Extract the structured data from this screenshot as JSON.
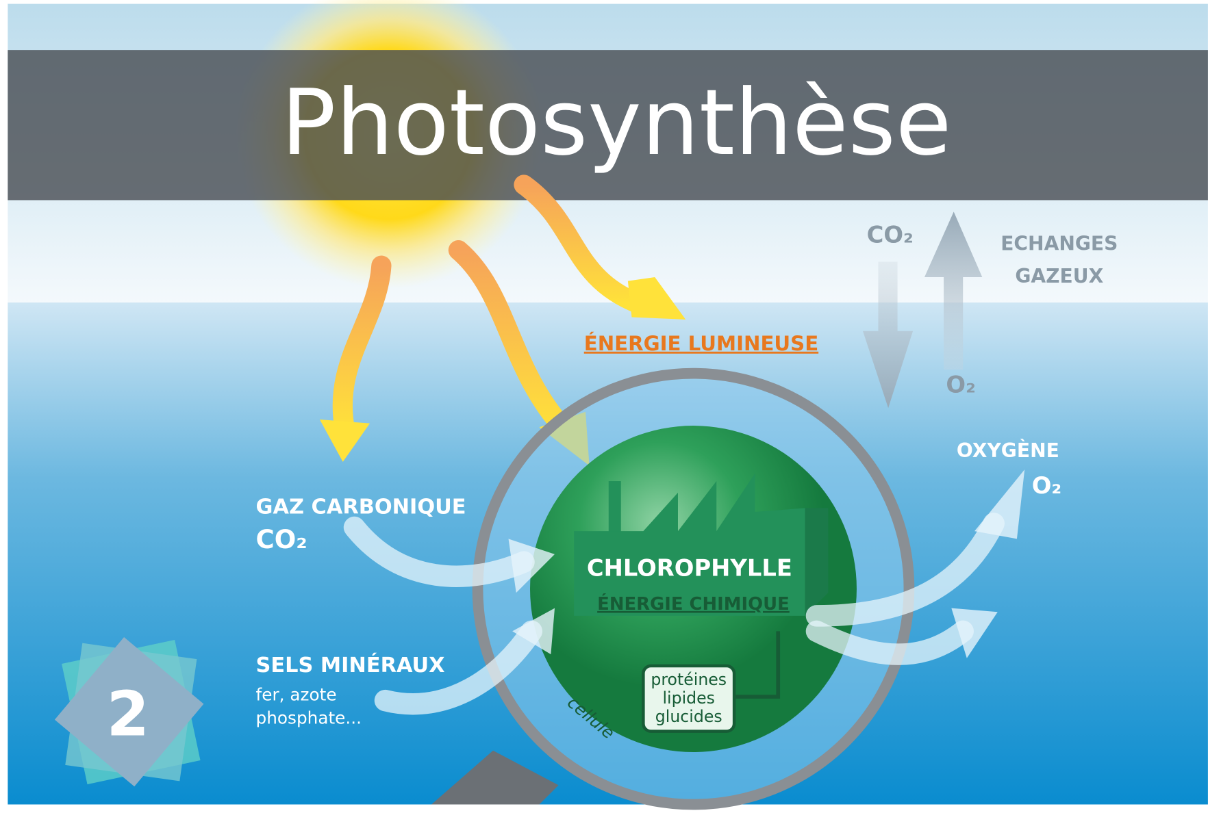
{
  "title": "Photosynthèse",
  "gas_exchange": {
    "co2": "CO₂",
    "label_line1": "ECHANGES",
    "label_line2": "GAZEUX",
    "o2": "O₂"
  },
  "light_energy": "ÉNERGIE LUMINEUSE",
  "oxygen": {
    "label": "OXYGÈNE",
    "formula": "O₂"
  },
  "carbon_dioxide": {
    "label": "GAZ CARBONIQUE",
    "formula": "CO₂"
  },
  "minerals": {
    "label": "SELS MINÉRAUX",
    "line1": "fer, azote",
    "line2": "phosphate..."
  },
  "factory": {
    "label": "CHLOROPHYLLE",
    "sublabel": "ÉNERGIE CHIMIQUE"
  },
  "products": [
    "protéines",
    "lipides",
    "glucides"
  ],
  "cell": "cellule",
  "badge": "2"
}
